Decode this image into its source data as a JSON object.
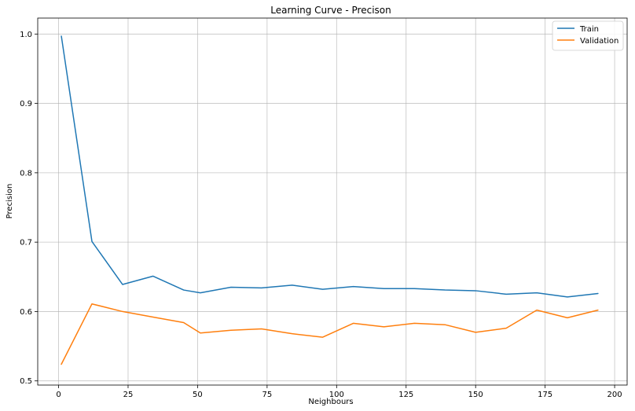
{
  "chart_data": {
    "type": "line",
    "title": "Learning Curve - Precison",
    "xlabel": "Neighbours",
    "ylabel": "Precision",
    "xlim": [
      -7.5,
      204.5
    ],
    "ylim": [
      0.494,
      1.023
    ],
    "xticks": [
      0,
      25,
      50,
      75,
      100,
      125,
      150,
      175,
      200
    ],
    "yticks": [
      0.5,
      0.6,
      0.7,
      0.8,
      0.9,
      1.0
    ],
    "ytick_labels": [
      "0.5",
      "0.6",
      "0.7",
      "0.8",
      "0.9",
      "1.0"
    ],
    "grid": true,
    "legend_position": "top-right",
    "x": [
      1,
      12,
      23,
      34,
      45,
      51,
      62,
      73,
      84,
      95,
      106,
      117,
      128,
      139,
      150,
      161,
      172,
      183,
      194
    ],
    "series": [
      {
        "name": "Train",
        "color": "#1f77b4",
        "values": [
          0.997,
          0.701,
          0.639,
          0.651,
          0.631,
          0.627,
          0.635,
          0.634,
          0.638,
          0.632,
          0.636,
          0.633,
          0.633,
          0.631,
          0.63,
          0.625,
          0.627,
          0.621,
          0.626
        ]
      },
      {
        "name": "Validation",
        "color": "#ff7f0e",
        "values": [
          0.524,
          0.611,
          0.6,
          0.592,
          0.584,
          0.569,
          0.573,
          0.575,
          0.568,
          0.563,
          0.583,
          0.578,
          0.583,
          0.581,
          0.57,
          0.576,
          0.602,
          0.591,
          0.602
        ]
      }
    ]
  }
}
